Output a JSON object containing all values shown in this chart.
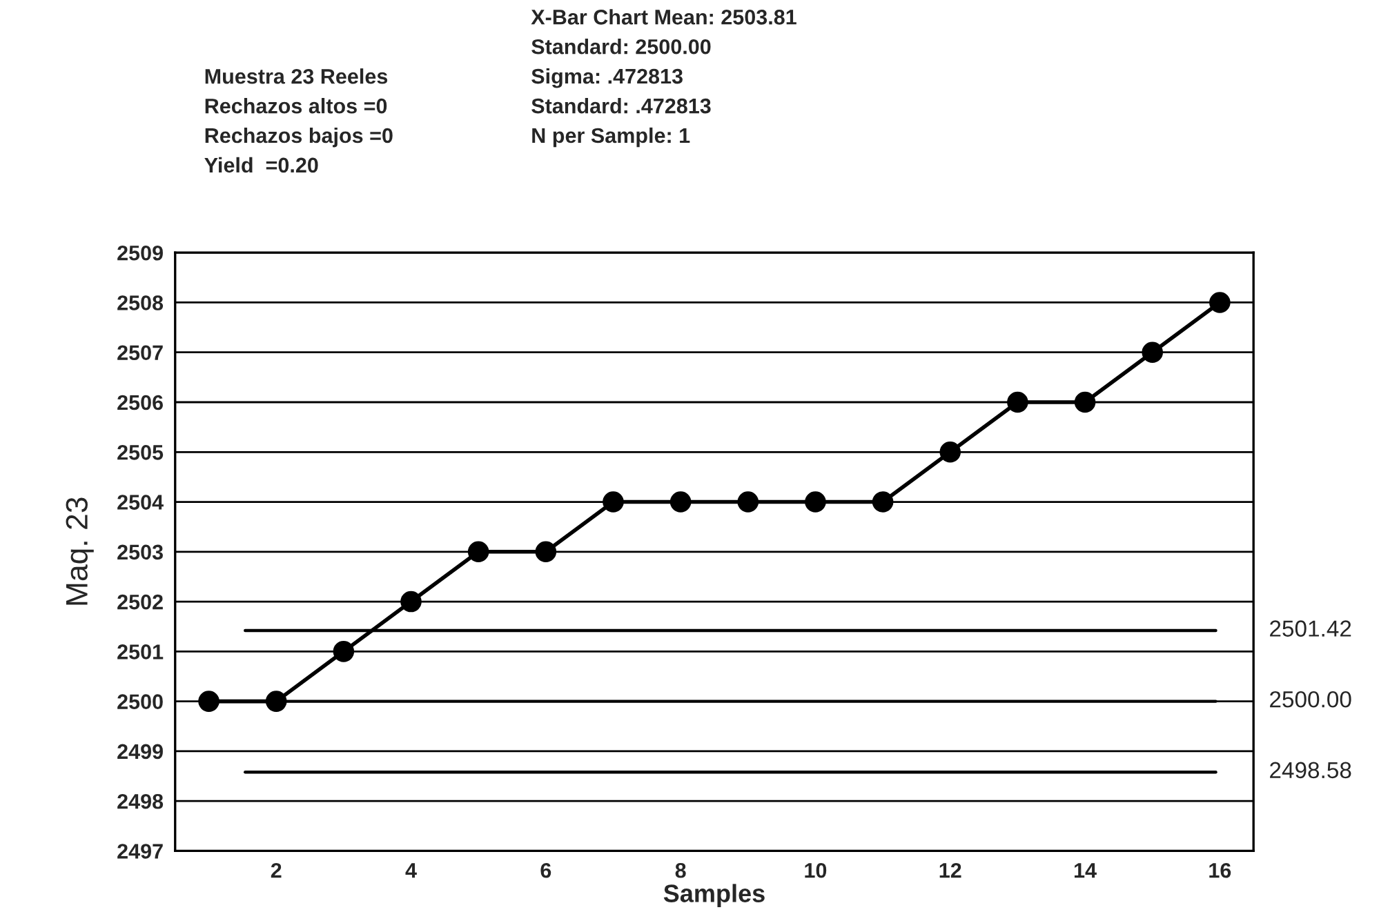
{
  "chart_data": {
    "type": "line",
    "xlabel": "Samples",
    "ylabel": "Maq. 23",
    "x": [
      1,
      2,
      3,
      4,
      5,
      6,
      7,
      8,
      9,
      10,
      11,
      12,
      13,
      14,
      15,
      16
    ],
    "series": [
      {
        "color": "#000000",
        "values": [
          2500,
          2500,
          2501,
          2502,
          2503,
          2503,
          2504,
          2504,
          2504,
          2504,
          2504,
          2505,
          2506,
          2506,
          2507,
          2508
        ]
      }
    ],
    "xlim": [
      0.5,
      16.5
    ],
    "xticks": [
      2,
      4,
      6,
      8,
      10,
      12,
      14,
      16
    ],
    "ylim": [
      2497,
      2509
    ],
    "yticks": [
      2497,
      2498,
      2499,
      2500,
      2501,
      2502,
      2503,
      2504,
      2505,
      2506,
      2507,
      2508,
      2509
    ],
    "grid": "y",
    "marker": "circle",
    "line_style": "solid",
    "ref_lines": [
      {
        "axis": "y",
        "value": 2501.42,
        "label": "2501.42",
        "color": "#000000"
      },
      {
        "axis": "y",
        "value": 2500.0,
        "label": "2500.00",
        "color": "#000000"
      },
      {
        "axis": "y",
        "value": 2498.58,
        "label": "2498.58",
        "color": "#000000"
      }
    ],
    "annotations": [
      "Muestra 23 Reeles\nRechazos altos =0\nRechazos bajos =0\nYield  =0.20",
      "X-Bar Chart Mean: 2503.81\nStandard: 2500.00\nSigma: .472813\nStandard: .472813\nN per Sample: 1"
    ]
  }
}
